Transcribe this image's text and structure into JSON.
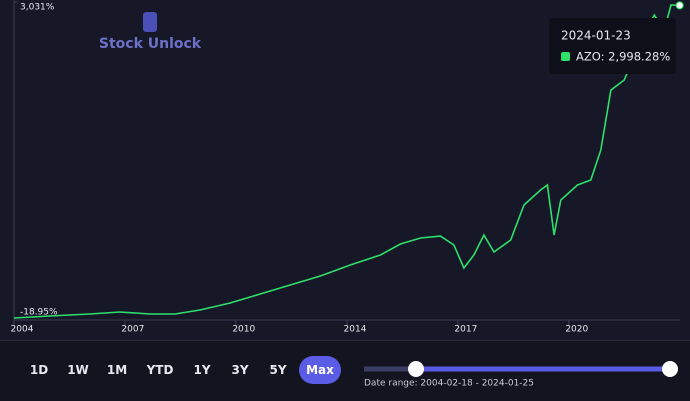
{
  "chart_data": {
    "type": "line",
    "x": [
      2004.13,
      2005.2,
      2006.4,
      2007.3,
      2008.2,
      2008.95,
      2009.7,
      2010.6,
      2011.5,
      2012.4,
      2013.3,
      2014.2,
      2015.1,
      2015.7,
      2016.3,
      2016.9,
      2017.3,
      2017.6,
      2017.9,
      2018.2,
      2018.5,
      2019.0,
      2019.4,
      2019.9,
      2020.1,
      2020.3,
      2020.5,
      2021.0,
      2021.4,
      2021.7,
      2022.0,
      2022.4,
      2022.9,
      2023.3,
      2023.6,
      2023.8,
      2024.06
    ],
    "series": [
      {
        "name": "AZO",
        "color": "#2ee06a",
        "values": [
          -19,
          0,
          20,
          39,
          20,
          20,
          58,
          126,
          213,
          300,
          386,
          493,
          589,
          695,
          753,
          772,
          686,
          464,
          589,
          782,
          618,
          734,
          1072,
          1217,
          1265,
          782,
          1120,
          1265,
          1313,
          1602,
          2181,
          2278,
          2664,
          2905,
          2760,
          3002,
          2998.28
        ]
      }
    ],
    "xlim": [
      2004.13,
      2024.07
    ],
    "xticks": [
      {
        "value": 2004.13,
        "label": "2004"
      },
      {
        "value": 2007.45,
        "label": "2007"
      },
      {
        "value": 2010.77,
        "label": "2010"
      },
      {
        "value": 2014.1,
        "label": "2014"
      },
      {
        "value": 2017.42,
        "label": "2017"
      },
      {
        "value": 2020.74,
        "label": "2020"
      }
    ],
    "ylim": [
      -18.95,
      3031
    ],
    "yticks": [
      {
        "value": -18.95,
        "label": "-18.95%"
      },
      {
        "value": 3031,
        "label": "3,031%"
      }
    ]
  },
  "ui": {
    "logo": "Stock Unlock",
    "tooltip": {
      "date": "2024-01-23",
      "label": "AZO: 2,998.28%"
    },
    "range_buttons": [
      "1D",
      "1W",
      "1M",
      "YTD",
      "1Y",
      "3Y",
      "5Y",
      "Max"
    ],
    "active_button": "Max",
    "date_range": "Date range: 2004-02-18 - 2024-01-25"
  }
}
